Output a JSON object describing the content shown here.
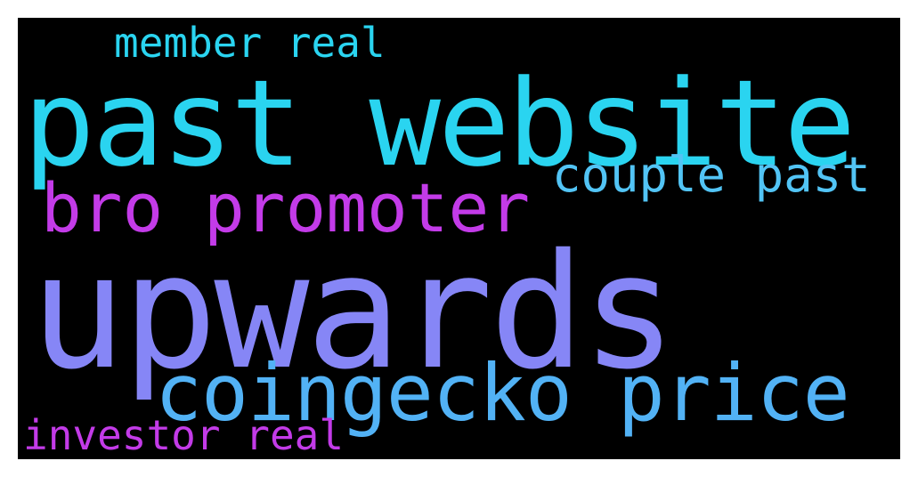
{
  "words": [
    {
      "text": "member real",
      "color": "#2ad4f0"
    },
    {
      "text": "past website",
      "color": "#2ad4f0"
    },
    {
      "text": "bro promoter",
      "color": "#c33be8"
    },
    {
      "text": "couple past",
      "color": "#52c4f5"
    },
    {
      "text": "upwards",
      "color": "#8686f6"
    },
    {
      "text": "coingecko price",
      "color": "#52b2f5"
    },
    {
      "text": "investor real",
      "color": "#c33be8"
    }
  ]
}
